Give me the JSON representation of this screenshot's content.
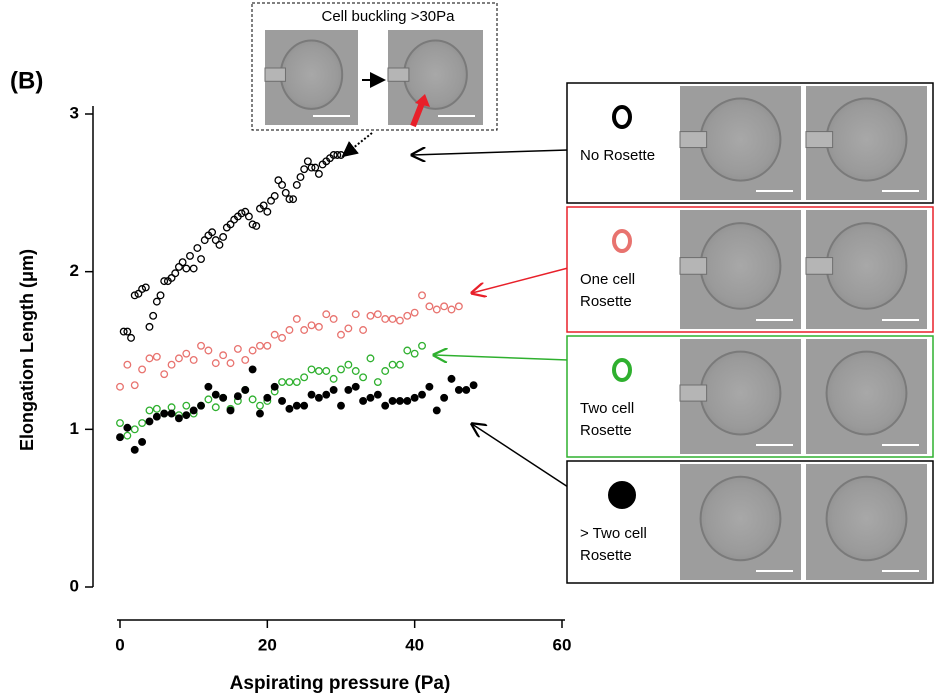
{
  "chart_data": {
    "type": "scatter",
    "panel_label": "(B)",
    "inset_title": "Cell buckling >30Pa",
    "xlabel": "Aspirating pressure (Pa)",
    "ylabel": "Elongation Length (μm)",
    "xlim": [
      0,
      60
    ],
    "xticks": [
      0,
      20,
      40,
      60
    ],
    "ylim": [
      0,
      3
    ],
    "yticks": [
      0,
      1,
      2,
      3
    ],
    "series": [
      {
        "name": "No Rosette",
        "color": "#000000",
        "marker": "open",
        "x": [
          0.5,
          1,
          1.5,
          2,
          2.5,
          3,
          3.5,
          4,
          4.5,
          5,
          5.5,
          6,
          6.5,
          7,
          7.5,
          8,
          8.5,
          9,
          9.5,
          10,
          10.5,
          11,
          11.5,
          12,
          12.5,
          13,
          13.5,
          14,
          14.5,
          15,
          15.5,
          16,
          16.5,
          17,
          17.5,
          18,
          18.5,
          19,
          19.5,
          20,
          20.5,
          21,
          21.5,
          22,
          22.5,
          23,
          23.5,
          24,
          24.5,
          25,
          25.5,
          26,
          26.5,
          27,
          27.5,
          28,
          28.5,
          29,
          29.5,
          30
        ],
        "values": [
          1.62,
          1.62,
          1.58,
          1.85,
          1.86,
          1.89,
          1.9,
          1.65,
          1.72,
          1.81,
          1.85,
          1.94,
          1.94,
          1.96,
          1.99,
          2.03,
          2.06,
          2.02,
          2.1,
          2.02,
          2.15,
          2.08,
          2.2,
          2.23,
          2.25,
          2.2,
          2.17,
          2.22,
          2.28,
          2.3,
          2.33,
          2.35,
          2.37,
          2.38,
          2.35,
          2.3,
          2.29,
          2.4,
          2.42,
          2.38,
          2.45,
          2.48,
          2.58,
          2.55,
          2.5,
          2.46,
          2.46,
          2.55,
          2.6,
          2.65,
          2.7,
          2.66,
          2.66,
          2.62,
          2.68,
          2.7,
          2.72,
          2.74,
          2.74,
          2.74
        ]
      },
      {
        "name": "One cell Rosette",
        "color": "#e8736f",
        "marker": "open",
        "x": [
          0,
          1,
          2,
          3,
          4,
          5,
          6,
          7,
          8,
          9,
          10,
          11,
          12,
          13,
          14,
          15,
          16,
          17,
          18,
          19,
          20,
          21,
          22,
          23,
          24,
          25,
          26,
          27,
          28,
          29,
          30,
          31,
          32,
          33,
          34,
          35,
          36,
          37,
          38,
          39,
          40,
          41,
          42,
          43,
          44,
          45,
          46
        ],
        "values": [
          1.27,
          1.41,
          1.28,
          1.38,
          1.45,
          1.46,
          1.35,
          1.41,
          1.45,
          1.48,
          1.44,
          1.53,
          1.5,
          1.42,
          1.47,
          1.42,
          1.51,
          1.44,
          1.5,
          1.53,
          1.53,
          1.6,
          1.58,
          1.63,
          1.7,
          1.63,
          1.66,
          1.65,
          1.73,
          1.7,
          1.6,
          1.64,
          1.73,
          1.63,
          1.72,
          1.73,
          1.7,
          1.7,
          1.69,
          1.72,
          1.74,
          1.85,
          1.78,
          1.76,
          1.78,
          1.76,
          1.78
        ]
      },
      {
        "name": "Two cell Rosette",
        "color": "#2fb02f",
        "marker": "open",
        "x": [
          0,
          1,
          2,
          3,
          4,
          5,
          6,
          7,
          8,
          9,
          10,
          11,
          12,
          13,
          14,
          15,
          16,
          17,
          18,
          19,
          20,
          21,
          22,
          23,
          24,
          25,
          26,
          27,
          28,
          29,
          30,
          31,
          32,
          33,
          34,
          35,
          36,
          37,
          38,
          39,
          40,
          41
        ],
        "values": [
          1.04,
          0.96,
          1.0,
          1.04,
          1.12,
          1.13,
          1.1,
          1.14,
          1.09,
          1.15,
          1.1,
          1.15,
          1.19,
          1.14,
          1.2,
          1.13,
          1.18,
          1.25,
          1.19,
          1.15,
          1.18,
          1.24,
          1.3,
          1.3,
          1.3,
          1.33,
          1.38,
          1.37,
          1.37,
          1.32,
          1.38,
          1.41,
          1.37,
          1.33,
          1.45,
          1.3,
          1.37,
          1.41,
          1.41,
          1.5,
          1.48,
          1.53
        ]
      },
      {
        "name": "> Two cell Rosette",
        "color": "#000000",
        "marker": "filled",
        "x": [
          0,
          1,
          2,
          3,
          4,
          5,
          6,
          7,
          8,
          9,
          10,
          11,
          12,
          13,
          14,
          15,
          16,
          17,
          18,
          19,
          20,
          21,
          22,
          23,
          24,
          25,
          26,
          27,
          28,
          29,
          30,
          31,
          32,
          33,
          34,
          35,
          36,
          37,
          38,
          39,
          40,
          41,
          42,
          43,
          44,
          45,
          46,
          47,
          48
        ],
        "values": [
          0.95,
          1.01,
          0.87,
          0.92,
          1.05,
          1.08,
          1.1,
          1.1,
          1.07,
          1.09,
          1.12,
          1.15,
          1.27,
          1.22,
          1.2,
          1.12,
          1.21,
          1.25,
          1.38,
          1.1,
          1.2,
          1.27,
          1.18,
          1.13,
          1.15,
          1.15,
          1.22,
          1.2,
          1.22,
          1.25,
          1.15,
          1.25,
          1.27,
          1.18,
          1.2,
          1.22,
          1.15,
          1.18,
          1.18,
          1.18,
          1.2,
          1.22,
          1.27,
          1.12,
          1.2,
          1.32,
          1.25,
          1.25,
          1.28
        ]
      }
    ]
  }
}
